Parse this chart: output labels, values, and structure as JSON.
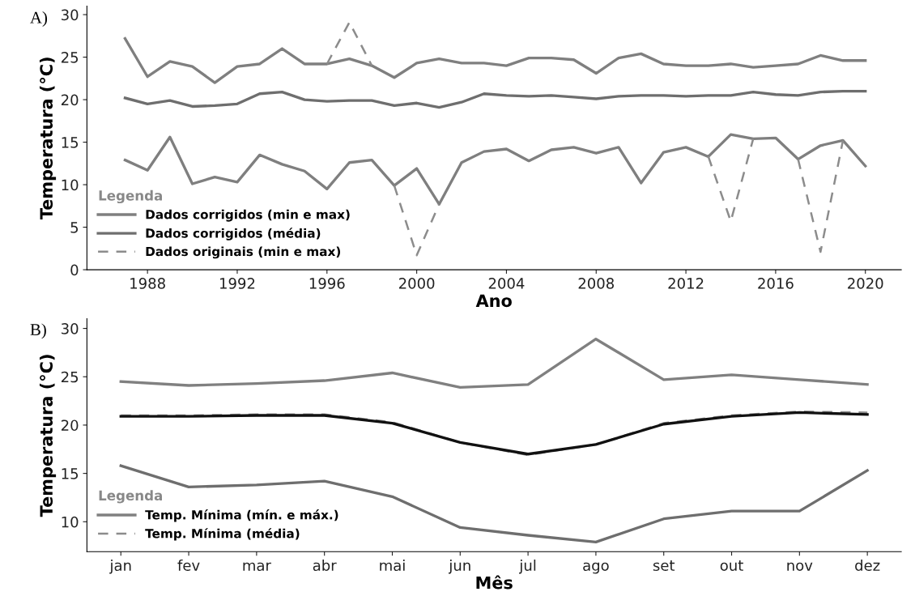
{
  "chart_data": [
    {
      "type": "line",
      "xlabel": "Ano",
      "ylabel": "Temperatura (°C)",
      "legend_title": "Legenda",
      "legend": "bottom left",
      "grid": false,
      "annotations": [
        "A)"
      ],
      "x": [
        1987,
        1988,
        1989,
        1990,
        1991,
        1992,
        1993,
        1994,
        1995,
        1996,
        1997,
        1998,
        1999,
        2000,
        2001,
        2002,
        2003,
        2004,
        2005,
        2006,
        2007,
        2008,
        2009,
        2010,
        2011,
        2012,
        2013,
        2014,
        2015,
        2016,
        2017,
        2018,
        2019,
        2020
      ],
      "xlim": [
        1985.3,
        2021.6
      ],
      "xticks": [
        1988,
        1992,
        1996,
        2000,
        2004,
        2008,
        2012,
        2016,
        2020
      ],
      "ylim": [
        0,
        31
      ],
      "yticks": [
        0,
        5,
        10,
        15,
        20,
        25,
        30
      ],
      "series": [
        {
          "name": "Dados corrigidos (min e max)",
          "color": "#7f7f7f",
          "line_style": "solid",
          "values": [
            27.2,
            22.7,
            24.5,
            23.9,
            22.0,
            23.9,
            24.2,
            26.0,
            24.2,
            24.2,
            24.8,
            24.0,
            22.6,
            24.3,
            24.8,
            24.3,
            24.3,
            24.0,
            24.9,
            24.9,
            24.7,
            23.1,
            24.9,
            25.4,
            24.2,
            24.0,
            24.0,
            24.2,
            23.8,
            24.0,
            24.2,
            25.2,
            24.6,
            24.6
          ]
        },
        {
          "name": "Dados corrigidos (média)",
          "color": "#6e6e6e",
          "line_style": "solid",
          "values": [
            20.2,
            19.5,
            19.9,
            19.2,
            19.3,
            19.5,
            20.7,
            20.9,
            20.0,
            19.8,
            19.9,
            19.9,
            19.3,
            19.6,
            19.1,
            19.7,
            20.7,
            20.5,
            20.4,
            20.5,
            20.3,
            20.1,
            20.4,
            20.5,
            20.5,
            20.4,
            20.5,
            20.5,
            20.9,
            20.6,
            20.5,
            20.9,
            21.0,
            21.0
          ]
        },
        {
          "color": "#7f7f7f",
          "line_style": "solid",
          "values": [
            12.9,
            11.7,
            15.6,
            10.1,
            10.9,
            10.3,
            13.5,
            12.4,
            11.6,
            9.5,
            12.6,
            12.9,
            9.9,
            11.9,
            7.7,
            12.6,
            13.9,
            14.2,
            12.8,
            14.1,
            14.4,
            13.7,
            14.4,
            10.2,
            13.8,
            14.4,
            13.3,
            15.9,
            15.4,
            15.5,
            13.0,
            14.6,
            15.2,
            12.2
          ]
        },
        {
          "name": "Dados originais (min e max)",
          "color": "#8c8c8c",
          "line_style": "dashed",
          "values": [
            null,
            null,
            null,
            null,
            null,
            null,
            null,
            null,
            null,
            24.2,
            29.1,
            24.0,
            null,
            null,
            null,
            null,
            null,
            null,
            null,
            null,
            null,
            null,
            null,
            null,
            null,
            null,
            null,
            null,
            null,
            null,
            null,
            null,
            null,
            null
          ]
        },
        {
          "color": "#8c8c8c",
          "line_style": "dashed",
          "values": [
            null,
            null,
            null,
            null,
            null,
            null,
            null,
            null,
            null,
            null,
            null,
            null,
            9.9,
            1.7,
            7.7,
            null,
            null,
            null,
            null,
            null,
            null,
            null,
            null,
            null,
            null,
            null,
            13.3,
            5.7,
            15.4,
            null,
            13.0,
            2.1,
            15.2,
            null
          ]
        }
      ]
    },
    {
      "type": "line",
      "xlabel": "Mês",
      "ylabel": "Temperatura (°C)",
      "legend_title": "Legenda",
      "legend": "bottom left",
      "grid": false,
      "annotations": [
        "B)"
      ],
      "categories": [
        "jan",
        "fev",
        "mar",
        "abr",
        "mai",
        "jun",
        "jul",
        "ago",
        "set",
        "out",
        "nov",
        "dez"
      ],
      "ylim": [
        6.9,
        31.0
      ],
      "yticks": [
        10,
        15,
        20,
        25,
        30
      ],
      "series": [
        {
          "name": "Temp. Mínima (mín. e máx.)",
          "color": "#808080",
          "line_style": "solid",
          "values": [
            24.5,
            24.1,
            24.3,
            24.6,
            25.4,
            23.9,
            24.2,
            28.9,
            24.7,
            25.2,
            24.7,
            24.2
          ]
        },
        {
          "name": "Temp. Mínima (média)",
          "color": "#8c8c8c",
          "line_style": "dashed",
          "values": [
            21.0,
            21.0,
            21.1,
            21.1,
            20.3,
            18.2,
            16.9,
            18.0,
            20.2,
            21.0,
            21.4,
            21.3
          ]
        },
        {
          "color": "#111111",
          "line_style": "solid",
          "values": [
            20.9,
            20.9,
            21.0,
            21.0,
            20.2,
            18.2,
            17.0,
            18.0,
            20.1,
            20.9,
            21.3,
            21.1
          ]
        },
        {
          "color": "#6e6e6e",
          "line_style": "solid",
          "values": [
            15.8,
            13.6,
            13.8,
            14.2,
            12.6,
            9.4,
            8.6,
            7.9,
            10.3,
            11.1,
            11.1,
            15.3
          ]
        }
      ]
    }
  ]
}
